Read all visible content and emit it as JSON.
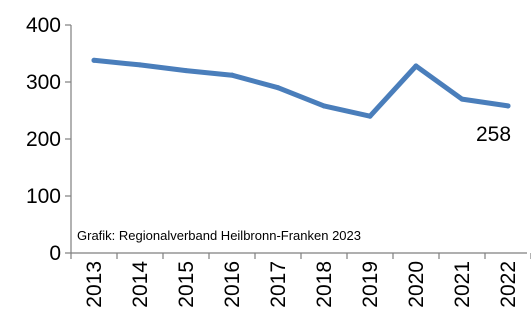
{
  "chart_data": {
    "type": "line",
    "x": [
      "2013",
      "2014",
      "2015",
      "2016",
      "2017",
      "2018",
      "2019",
      "2020",
      "2021",
      "2022"
    ],
    "series": [
      {
        "values": [
          338,
          330,
          320,
          312,
          290,
          258,
          240,
          328,
          270,
          258
        ]
      }
    ],
    "ylim": [
      0,
      400
    ],
    "yticks": [
      0,
      100,
      200,
      300,
      400
    ],
    "grid": false,
    "line_color": "#4a7ebb",
    "end_label": "258",
    "annotation": "Grafik: Regionalverband Heilbronn-Franken 2023"
  }
}
